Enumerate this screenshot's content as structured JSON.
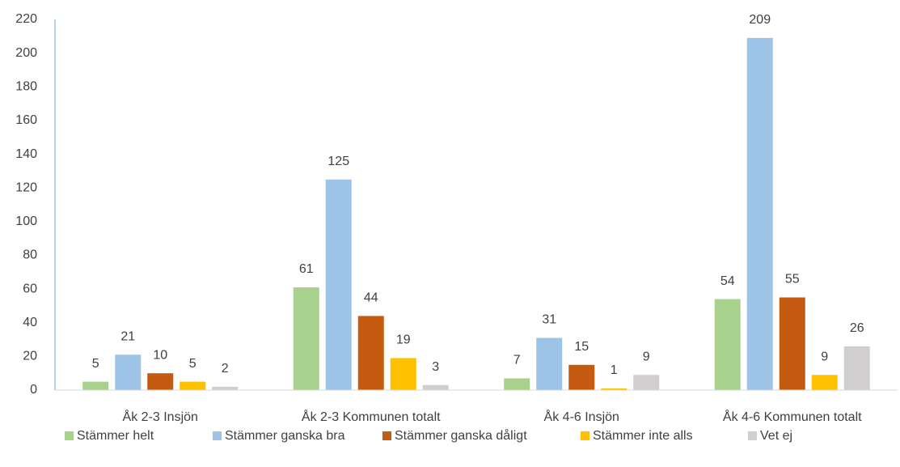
{
  "chart_data": {
    "type": "bar",
    "categories": [
      "Åk 2-3 Insjön",
      "Åk 2-3 Kommunen totalt",
      "Åk 4-6 Insjön",
      "Åk 4-6 Kommunen totalt"
    ],
    "series": [
      {
        "name": "Stämmer helt",
        "color": "#a9d18e",
        "values": [
          5,
          61,
          7,
          54
        ]
      },
      {
        "name": "Stämmer ganska bra",
        "color": "#9dc3e6",
        "values": [
          21,
          125,
          31,
          209
        ]
      },
      {
        "name": "Stämmer ganska dåligt",
        "color": "#c55a11",
        "values": [
          10,
          44,
          15,
          55
        ]
      },
      {
        "name": "Stämmer inte alls",
        "color": "#ffc000",
        "values": [
          5,
          19,
          1,
          9
        ]
      },
      {
        "name": "Vet ej",
        "color": "#d0cece",
        "values": [
          2,
          3,
          9,
          26
        ]
      }
    ],
    "ylim": [
      0,
      220
    ],
    "yticks": [
      0,
      20,
      40,
      60,
      80,
      100,
      120,
      140,
      160,
      180,
      200,
      220
    ],
    "legend": "bottom"
  }
}
